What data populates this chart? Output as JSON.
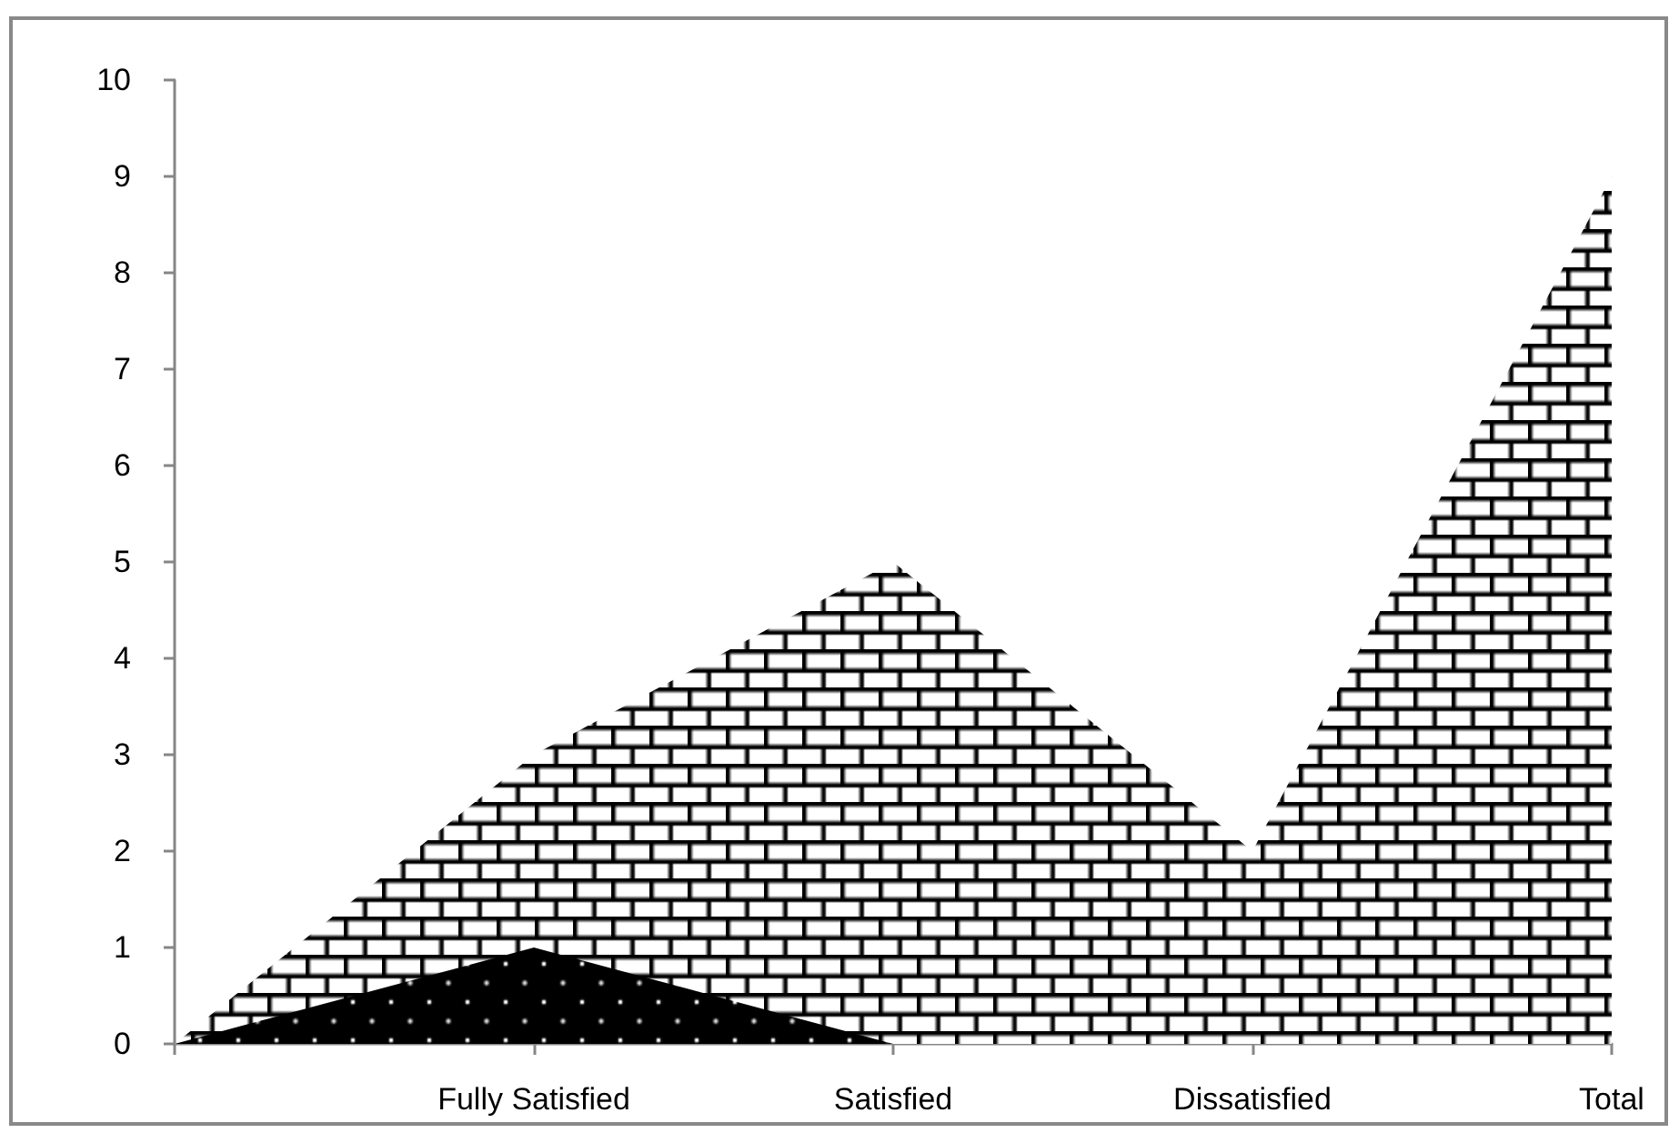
{
  "chart_data": {
    "type": "area",
    "categories": [
      null,
      "Fully Satisfied",
      "Satisfied",
      "Dissatisfied",
      "Total"
    ],
    "series": [
      {
        "color": "#000000",
        "values": [
          0,
          3,
          5,
          2,
          9
        ]
      },
      {
        "color": "#000000",
        "values": [
          0,
          1,
          0,
          null,
          null
        ]
      }
    ],
    "ylim": [
      0,
      10
    ],
    "yticks": [
      0,
      1,
      2,
      3,
      4,
      5,
      6,
      7,
      8,
      9,
      10
    ],
    "grid": false,
    "marker": "none"
  }
}
